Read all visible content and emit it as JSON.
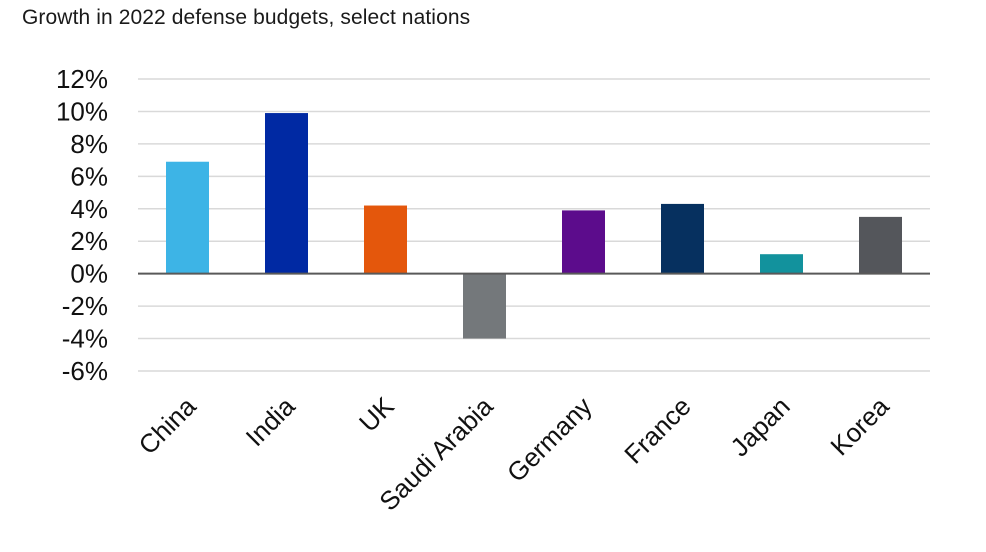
{
  "chart_data": {
    "type": "bar",
    "title": "Growth in 2022 defense budgets, select nations",
    "xlabel": "",
    "ylabel": "",
    "ylim": [
      -6,
      12
    ],
    "yticks": [
      12,
      10,
      8,
      6,
      4,
      2,
      0,
      -2,
      -4,
      -6
    ],
    "ytick_labels": [
      "12%",
      "10%",
      "8%",
      "6%",
      "4%",
      "2%",
      "0%",
      "-2%",
      "-4%",
      "-6%"
    ],
    "grid": true,
    "categories": [
      "China",
      "India",
      "UK",
      "Saudi Arabia",
      "Germany",
      "France",
      "Japan",
      "Korea"
    ],
    "values": [
      6.9,
      9.9,
      4.2,
      -4.0,
      3.9,
      4.3,
      1.2,
      3.5
    ],
    "colors": [
      "#3db4e6",
      "#0029a3",
      "#e4570c",
      "#74787b",
      "#5c0c8c",
      "#06305f",
      "#12929d",
      "#54565b"
    ]
  }
}
